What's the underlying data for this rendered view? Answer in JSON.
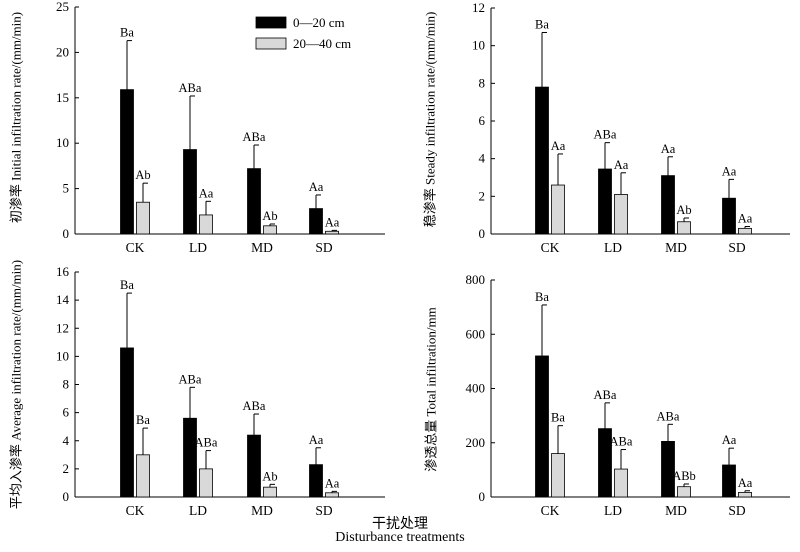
{
  "figure": {
    "xlabel_cn": "干扰处理",
    "xlabel_en": "Disturbance treatments"
  },
  "chart_data": [
    {
      "type": "bar",
      "ylabel_cn": "初渗率",
      "ylabel_en": "Initial infiltration rate/(mm/min)",
      "ylim": [
        0,
        25
      ],
      "ticks": [
        0,
        5,
        10,
        15,
        20,
        25
      ],
      "categories": [
        "CK",
        "LD",
        "MD",
        "SD"
      ],
      "legend": true,
      "legend_position": "top-right",
      "series": [
        {
          "name": "0—20 cm",
          "color": "#000000",
          "values": [
            15.9,
            9.3,
            7.2,
            2.8
          ],
          "errors": [
            5.4,
            5.9,
            2.6,
            1.5
          ],
          "letters": [
            "Ba",
            "ABa",
            "ABa",
            "Aa"
          ]
        },
        {
          "name": "20—40 cm",
          "color": "#d9d9d9",
          "values": [
            3.5,
            2.1,
            0.9,
            0.3
          ],
          "errors": [
            2.1,
            1.5,
            0.2,
            0.1
          ],
          "letters": [
            "Ab",
            "Aa",
            "Ab",
            "Aa"
          ]
        }
      ]
    },
    {
      "type": "bar",
      "ylabel_cn": "稳渗率",
      "ylabel_en": "Steady infiltration rate/(mm/min)",
      "ylim": [
        0,
        12
      ],
      "ticks": [
        0,
        2,
        4,
        6,
        8,
        10,
        12
      ],
      "categories": [
        "CK",
        "LD",
        "MD",
        "SD"
      ],
      "legend": false,
      "series": [
        {
          "name": "0—20 cm",
          "color": "#000000",
          "values": [
            7.8,
            3.45,
            3.1,
            1.9
          ],
          "errors": [
            2.9,
            1.4,
            1.0,
            1.0
          ],
          "letters": [
            "Ba",
            "ABa",
            "Aa",
            "Aa"
          ]
        },
        {
          "name": "20—40 cm",
          "color": "#d9d9d9",
          "values": [
            2.6,
            2.1,
            0.65,
            0.3
          ],
          "errors": [
            1.65,
            1.15,
            0.2,
            0.1
          ],
          "letters": [
            "Aa",
            "Aa",
            "Ab",
            "Aa"
          ]
        }
      ]
    },
    {
      "type": "bar",
      "ylabel_cn": "平均入渗率",
      "ylabel_en": "Average infiltration rate/(mm/min)",
      "ylim": [
        0,
        16
      ],
      "ticks": [
        0,
        2,
        4,
        6,
        8,
        10,
        12,
        14,
        16
      ],
      "categories": [
        "CK",
        "LD",
        "MD",
        "SD"
      ],
      "legend": false,
      "series": [
        {
          "name": "0—20 cm",
          "color": "#000000",
          "values": [
            10.6,
            5.6,
            4.4,
            2.3
          ],
          "errors": [
            3.9,
            2.2,
            1.5,
            1.2
          ],
          "letters": [
            "Ba",
            "ABa",
            "ABa",
            "Aa"
          ]
        },
        {
          "name": "20—40 cm",
          "color": "#d9d9d9",
          "values": [
            3.0,
            2.0,
            0.7,
            0.3
          ],
          "errors": [
            1.9,
            1.3,
            0.2,
            0.1
          ],
          "letters": [
            "Ba",
            "ABa",
            "Ab",
            "Aa"
          ]
        }
      ]
    },
    {
      "type": "bar",
      "ylabel_cn": "渗透总量",
      "ylabel_en": "Total infiltration/mm",
      "ylim": [
        0,
        800
      ],
      "ticks": [
        0,
        200,
        400,
        600,
        800
      ],
      "categories": [
        "CK",
        "LD",
        "MD",
        "SD"
      ],
      "legend": false,
      "series": [
        {
          "name": "0—20 cm",
          "color": "#000000",
          "values": [
            520,
            252,
            205,
            118
          ],
          "errors": [
            188,
            95,
            63,
            62
          ],
          "letters": [
            "Ba",
            "ABa",
            "ABa",
            "Aa"
          ]
        },
        {
          "name": "20—40 cm",
          "color": "#d9d9d9",
          "values": [
            160,
            103,
            38,
            17
          ],
          "errors": [
            103,
            72,
            10,
            6
          ],
          "letters": [
            "Ba",
            "ABa",
            "ABb",
            "Aa"
          ]
        }
      ]
    }
  ]
}
